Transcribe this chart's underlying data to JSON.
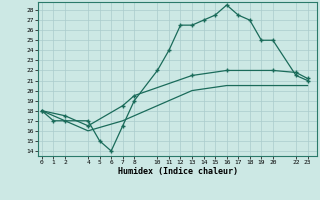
{
  "xlabel": "Humidex (Indice chaleur)",
  "bg_color": "#cce8e4",
  "line_color": "#1a6b5a",
  "grid_color": "#aacccc",
  "spine_color": "#2a7a6a",
  "xticks": [
    0,
    1,
    2,
    4,
    5,
    6,
    7,
    8,
    10,
    11,
    12,
    13,
    14,
    15,
    16,
    17,
    18,
    19,
    20,
    22,
    23
  ],
  "yticks": [
    14,
    15,
    16,
    17,
    18,
    19,
    20,
    21,
    22,
    23,
    24,
    25,
    26,
    27,
    28
  ],
  "ylim": [
    13.5,
    28.8
  ],
  "xlim": [
    -0.3,
    23.8
  ],
  "line1_x": [
    0,
    1,
    2,
    4,
    5,
    6,
    7,
    8,
    10,
    11,
    12,
    13,
    14,
    15,
    16,
    17,
    18,
    19,
    20,
    22,
    23
  ],
  "line1_y": [
    18,
    17,
    17,
    17,
    15,
    14,
    16.5,
    19,
    22,
    24,
    26.5,
    26.5,
    27,
    27.5,
    28.5,
    27.5,
    27,
    25,
    25,
    21.5,
    21
  ],
  "line2_x": [
    0,
    2,
    4,
    7,
    8,
    13,
    16,
    20,
    22,
    23
  ],
  "line2_y": [
    18,
    17.5,
    16.5,
    18.5,
    19.5,
    21.5,
    22,
    22,
    21.8,
    21.2
  ],
  "line3_x": [
    0,
    2,
    4,
    7,
    13,
    16,
    20,
    22,
    23
  ],
  "line3_y": [
    18,
    17,
    16,
    17,
    20,
    20.5,
    20.5,
    20.5,
    20.5
  ]
}
